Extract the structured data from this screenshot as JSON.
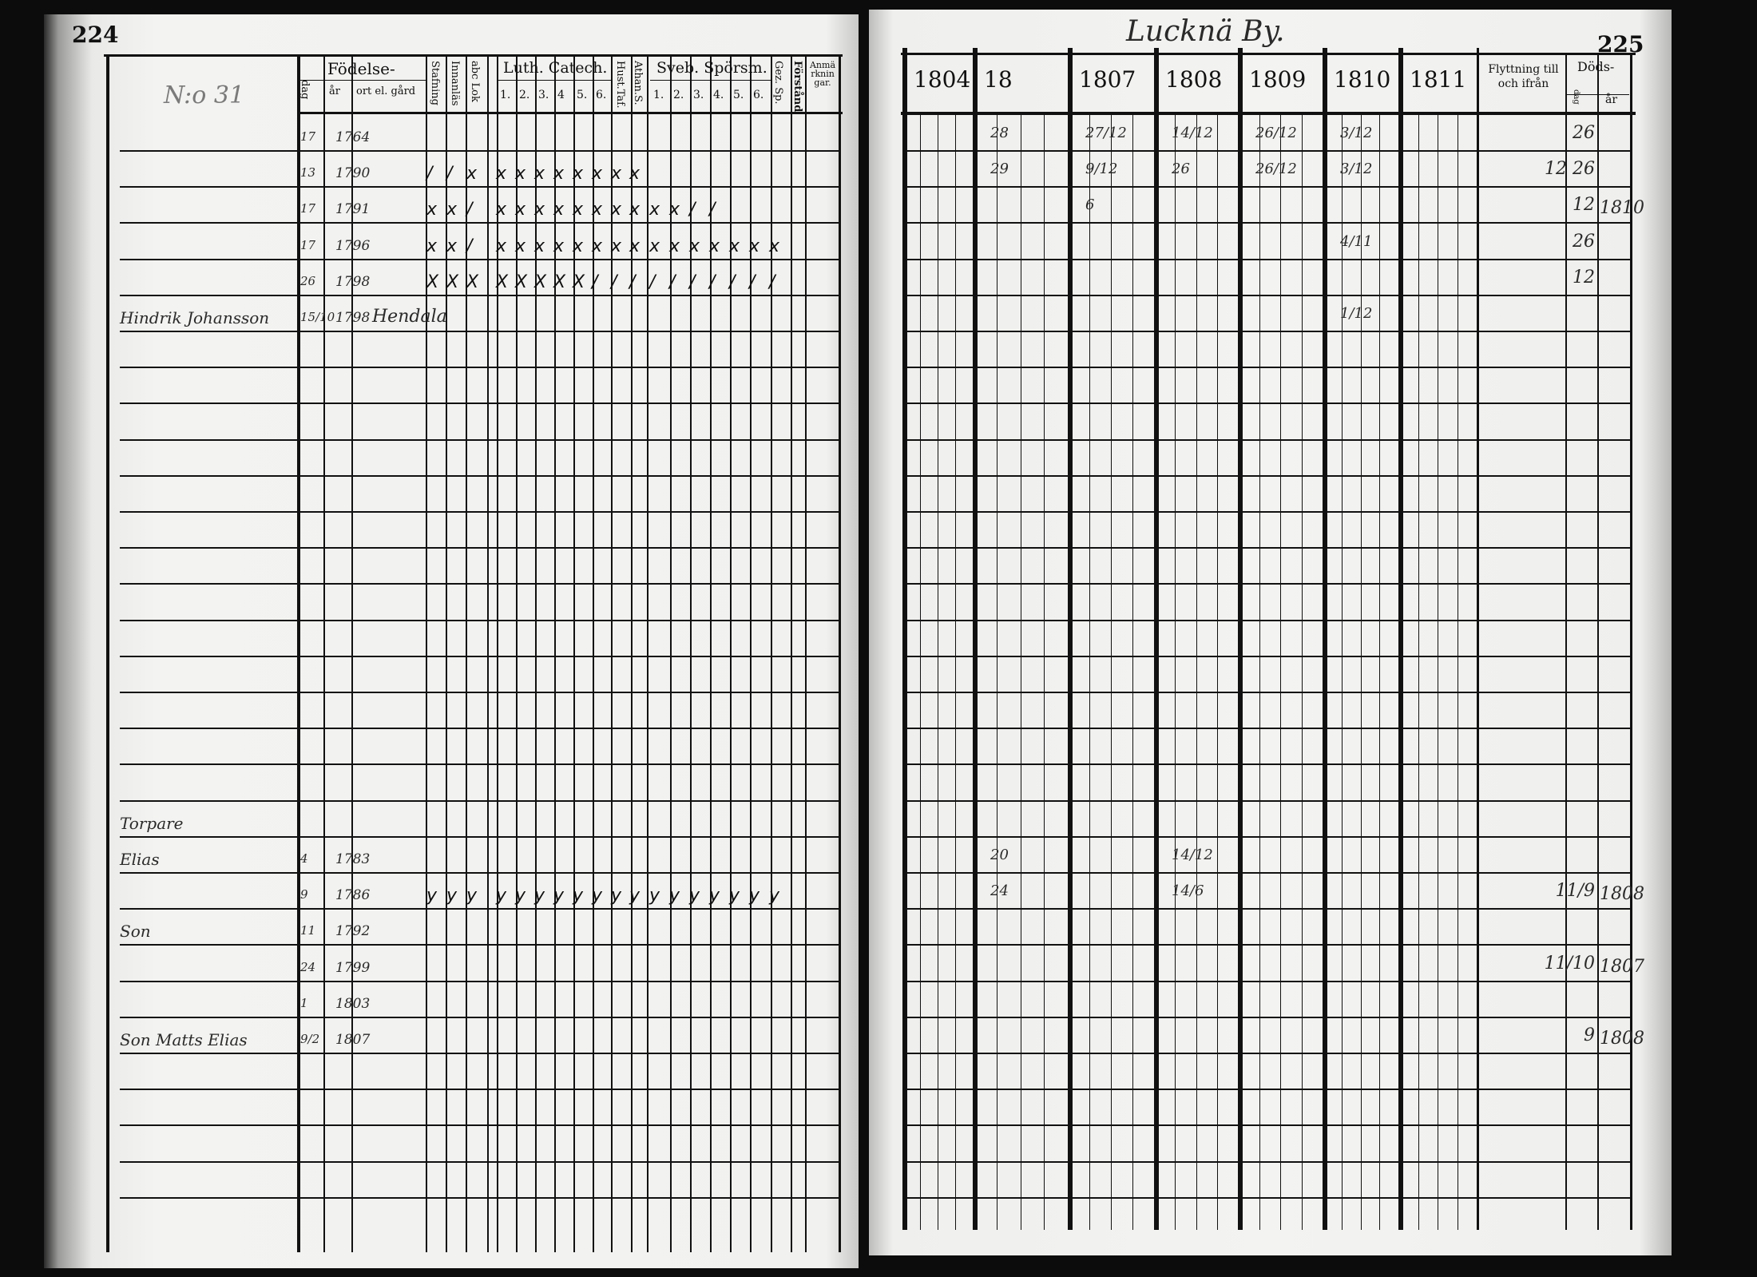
{
  "left_page": {
    "page_number": "224",
    "household_number": "N:o 31",
    "header": {
      "fodelse": "Födelse-",
      "dag": "dag",
      "ar": "år",
      "ort": "ort el. gård",
      "stafning": "Stafning",
      "innanlas": "Innanläs",
      "abc_lok": "abc Lok",
      "luth_catech": "Luth. Catech.",
      "luth_cols": [
        "1.",
        "2.",
        "3.",
        "4",
        "5.",
        "6."
      ],
      "hust_taf": "Hust.Taf.",
      "athan_s": "Athan.S.",
      "sveb_sporsm": "Sveb. Spörsm.",
      "sveb_cols": [
        "1.",
        "2.",
        "3.",
        "4.",
        "5.",
        "6."
      ],
      "gez_sp": "Gez. Sp.",
      "forstand": "Förstånd",
      "anmarkningar": "Anmärkningar."
    },
    "entries": [
      {
        "row": 0,
        "dag": "17",
        "ar": "1764",
        "marks": []
      },
      {
        "row": 1,
        "dag": "13",
        "ar": "1790",
        "marks": [
          "/",
          "/",
          "x",
          "x",
          "x",
          "x",
          "x",
          "x",
          "x",
          "x",
          "x"
        ]
      },
      {
        "row": 2,
        "dag": "17",
        "ar": "1791",
        "marks": [
          "x",
          "x",
          "/",
          "x",
          "x",
          "x",
          "x",
          "x",
          "x",
          "x",
          "x",
          "x",
          "x",
          "/",
          "/"
        ]
      },
      {
        "row": 3,
        "dag": "17",
        "ar": "1796",
        "marks": [
          "x",
          "x",
          "/",
          "x",
          "x",
          "x",
          "x",
          "x",
          "x",
          "x",
          "x",
          "x",
          "x",
          "x",
          "x",
          "x",
          "x",
          "x"
        ]
      },
      {
        "row": 4,
        "dag": "26",
        "ar": "1798",
        "marks": [
          "X",
          "X",
          "X",
          "X",
          "X",
          "X",
          "X",
          "X",
          "/",
          "/",
          "/",
          "/",
          "/",
          "/",
          "/",
          "/",
          "/",
          "/"
        ]
      },
      {
        "row": 5,
        "name": "Hindrik Johansson",
        "dag": "15/10",
        "ar": "1798",
        "ort": "Hendala",
        "marks": []
      },
      {
        "row": 19,
        "name": "Torpare",
        "marks": []
      },
      {
        "row": 20,
        "name": "Elias",
        "dag": "4",
        "ar": "1783",
        "marks": []
      },
      {
        "row": 21,
        "dag": "9",
        "ar": "1786",
        "marks": [
          "y",
          "y",
          "y",
          "y",
          "y",
          "y",
          "y",
          "y",
          "y",
          "y",
          "y",
          "y",
          "y",
          "y",
          "y",
          "y",
          "y",
          "y"
        ]
      },
      {
        "row": 22,
        "name": "Son",
        "dag": "11",
        "ar": "1792",
        "marks": []
      },
      {
        "row": 23,
        "dag": "24",
        "ar": "1799",
        "marks": []
      },
      {
        "row": 24,
        "dag": "1",
        "ar": "1803",
        "marks": []
      },
      {
        "row": 25,
        "name": "Son Matts Elias",
        "dag": "9/2",
        "ar": "1807",
        "marks": []
      }
    ]
  },
  "right_page": {
    "page_number": "225",
    "village": "Lucknä By.",
    "years": [
      "1804",
      "18",
      "1807",
      "1808",
      "1809",
      "1810",
      "1811"
    ],
    "flyttning": "Flyttning till och ifrån",
    "dods": "Döds-",
    "dods_dag": "dag",
    "dods_ar": "år",
    "entries": [
      {
        "row": 0,
        "year_col": 1,
        "value": "28"
      },
      {
        "row": 1,
        "year_col": 1,
        "value": "29"
      },
      {
        "row": 0,
        "year_col": 2,
        "value": "27/12"
      },
      {
        "row": 1,
        "year_col": 2,
        "value": "9/12"
      },
      {
        "row": 2,
        "year_col": 2,
        "value": "6"
      },
      {
        "row": 0,
        "year_col": 3,
        "value": "14/12"
      },
      {
        "row": 1,
        "year_col": 3,
        "value": "26"
      },
      {
        "row": 0,
        "year_col": 4,
        "value": "26/12"
      },
      {
        "row": 1,
        "year_col": 4,
        "value": "26/12"
      },
      {
        "row": 0,
        "year_col": 5,
        "value": "3/12"
      },
      {
        "row": 1,
        "year_col": 5,
        "value": "3/12"
      },
      {
        "row": 3,
        "year_col": 5,
        "value": "4/11"
      },
      {
        "row": 5,
        "year_col": 5,
        "value": "1/12"
      },
      {
        "row": 20,
        "year_col": 1,
        "value": "20"
      },
      {
        "row": 21,
        "year_col": 1,
        "value": "24"
      },
      {
        "row": 20,
        "year_col": 3,
        "value": "14/12"
      },
      {
        "row": 21,
        "year_col": 3,
        "value": "14/6"
      }
    ],
    "deaths": [
      {
        "row": 0,
        "dag": "26",
        "ar": ""
      },
      {
        "row": 1,
        "dag": "12 26",
        "ar": ""
      },
      {
        "row": 2,
        "dag": "12",
        "ar": "1810"
      },
      {
        "row": 3,
        "dag": "26",
        "ar": ""
      },
      {
        "row": 4,
        "dag": "12",
        "ar": ""
      },
      {
        "row": 21,
        "dag": "11/9",
        "ar": "1808"
      },
      {
        "row": 23,
        "dag": "11/10",
        "ar": "1807"
      },
      {
        "row": 25,
        "dag": "9",
        "ar": "1808"
      }
    ]
  }
}
